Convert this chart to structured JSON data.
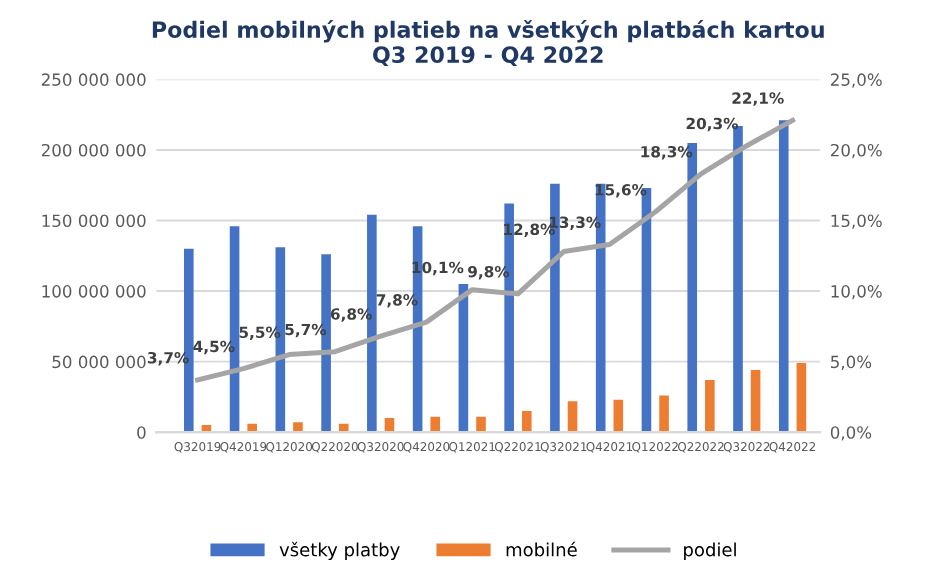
{
  "chart_data": {
    "type": "bar",
    "title": "Podiel mobilných platieb na všetkých platbách kartou\nQ3 2019 - Q4 2022",
    "categories": [
      "Q32019",
      "Q42019",
      "Q12020",
      "Q22020",
      "Q32020",
      "Q42020",
      "Q12021",
      "Q22021",
      "Q32021",
      "Q42021",
      "Q12022",
      "Q22022",
      "Q32022",
      "Q42022"
    ],
    "series": [
      {
        "name": "všetky platby",
        "color": "#4472c4",
        "values": [
          130000000,
          146000000,
          131000000,
          126000000,
          154000000,
          146000000,
          105000000,
          162000000,
          176000000,
          176000000,
          173000000,
          205000000,
          217000000,
          221000000
        ]
      },
      {
        "name": "mobilné",
        "color": "#ed7d31",
        "values": [
          5000000,
          6000000,
          7000000,
          6000000,
          10000000,
          11000000,
          11000000,
          15000000,
          22000000,
          23000000,
          26000000,
          37000000,
          44000000,
          49000000
        ]
      },
      {
        "name": "podiel",
        "type": "line",
        "axis": "y2",
        "color": "#a5a5a5",
        "values": [
          3.7,
          4.5,
          5.5,
          5.7,
          6.8,
          7.8,
          10.1,
          9.8,
          12.8,
          13.3,
          15.6,
          18.3,
          20.3,
          22.1
        ],
        "value_labels": [
          "3,7%",
          "4,5%",
          "5,5%",
          "5,7%",
          "6,8%",
          "7,8%",
          "10,1%",
          "9,8%",
          "12,8%",
          "13,3%",
          "15,6%",
          "18,3%",
          "20,3%",
          "22,1%"
        ]
      }
    ],
    "ylim": [
      0,
      250000000
    ],
    "yticks": [
      {
        "value": 0,
        "label": "0"
      },
      {
        "value": 50000000,
        "label": "50 000 000"
      },
      {
        "value": 100000000,
        "label": "100 000 000"
      },
      {
        "value": 150000000,
        "label": "150 000 000"
      },
      {
        "value": 200000000,
        "label": "200 000 000"
      },
      {
        "value": 250000000,
        "label": "250 000 000"
      }
    ],
    "y2lim": [
      0,
      25
    ],
    "y2ticks": [
      {
        "value": 0,
        "label": "0,0%"
      },
      {
        "value": 5,
        "label": "5,0%"
      },
      {
        "value": 10,
        "label": "10,0%"
      },
      {
        "value": 15,
        "label": "15,0%"
      },
      {
        "value": 20,
        "label": "20,0%"
      },
      {
        "value": 25,
        "label": "25,0%"
      }
    ],
    "grid": "y",
    "legend": "bottom"
  }
}
